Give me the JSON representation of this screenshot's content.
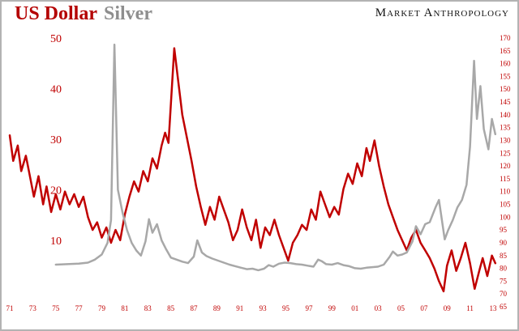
{
  "header": {
    "title_usd": "US Dollar",
    "title_silver": "Silver",
    "brand": "Market Anthropology"
  },
  "colors": {
    "usd_line": "#c00000",
    "silver_line": "#a8a8a8",
    "axis_text": "#c00000",
    "title_usd": "#b40000",
    "title_silver": "#8e8e8e",
    "background": "#ffffff",
    "frame": "#b3b3b3"
  },
  "chart_data": {
    "type": "line",
    "title": "US Dollar Silver",
    "grid": false,
    "legend_position": "none",
    "x_axis": {
      "tick_years": [
        1971,
        1973,
        1975,
        1977,
        1979,
        1981,
        1983,
        1985,
        1987,
        1989,
        1991,
        1993,
        1995,
        1997,
        1999,
        2001,
        2003,
        2005,
        2007,
        2009,
        2011,
        2013
      ],
      "tick_labels": [
        "71",
        "73",
        "75",
        "77",
        "79",
        "81",
        "83",
        "85",
        "87",
        "89",
        "91",
        "93",
        "95",
        "97",
        "99",
        "01",
        "03",
        "05",
        "07",
        "09",
        "11",
        "13"
      ],
      "range": [
        1971,
        2013.5
      ]
    },
    "left_axis": {
      "ticks": [
        50,
        40,
        30,
        20,
        10
      ],
      "range": [
        10,
        50
      ],
      "series": "Silver"
    },
    "right_axis": {
      "ticks": [
        170,
        165,
        160,
        155,
        150,
        145,
        140,
        135,
        130,
        125,
        120,
        115,
        110,
        105,
        100,
        95,
        90,
        85,
        80,
        75,
        70,
        65
      ],
      "range": [
        65,
        170
      ],
      "series": "US Dollar"
    },
    "series": [
      {
        "name": "US Dollar",
        "data_name": "usd-line",
        "axis": "right",
        "color": "#c00000",
        "x": [
          1971.0,
          1971.3,
          1971.7,
          1972.0,
          1972.4,
          1972.8,
          1973.1,
          1973.5,
          1973.9,
          1974.2,
          1974.6,
          1975.0,
          1975.4,
          1975.8,
          1976.2,
          1976.6,
          1977.0,
          1977.4,
          1977.8,
          1978.2,
          1978.6,
          1979.0,
          1979.4,
          1979.8,
          1980.2,
          1980.6,
          1981.0,
          1981.4,
          1981.8,
          1982.2,
          1982.6,
          1983.0,
          1983.4,
          1983.8,
          1984.2,
          1984.5,
          1984.8,
          1985.3,
          1985.7,
          1986.0,
          1986.4,
          1986.8,
          1987.2,
          1987.6,
          1988.0,
          1988.4,
          1988.8,
          1989.2,
          1989.6,
          1990.0,
          1990.4,
          1990.8,
          1991.2,
          1991.6,
          1992.0,
          1992.4,
          1992.8,
          1993.2,
          1993.6,
          1994.0,
          1994.4,
          1994.8,
          1995.2,
          1995.6,
          1996.0,
          1996.4,
          1996.8,
          1997.2,
          1997.6,
          1998.0,
          1998.4,
          1998.8,
          1999.2,
          1999.6,
          2000.0,
          2000.4,
          2000.8,
          2001.2,
          2001.6,
          2002.0,
          2002.3,
          2002.7,
          2003.1,
          2003.5,
          2003.9,
          2004.3,
          2004.7,
          2005.1,
          2005.5,
          2005.9,
          2006.3,
          2006.7,
          2007.1,
          2007.5,
          2007.9,
          2008.3,
          2008.7,
          2009.0,
          2009.4,
          2009.8,
          2010.2,
          2010.6,
          2011.0,
          2011.4,
          2011.8,
          2012.1,
          2012.5,
          2012.9,
          2013.2
        ],
        "values": [
          132,
          122,
          128,
          118,
          124,
          115,
          108,
          116,
          105,
          112,
          102,
          109,
          103,
          110,
          105,
          109,
          104,
          108,
          100,
          95,
          98,
          92,
          96,
          90,
          95,
          91,
          101,
          108,
          114,
          110,
          118,
          114,
          123,
          119,
          128,
          133,
          129,
          166,
          151,
          140,
          131,
          122,
          112,
          104,
          97,
          104,
          99,
          108,
          103,
          98,
          91,
          95,
          103,
          96,
          91,
          99,
          88,
          96,
          93,
          99,
          93,
          88,
          83,
          90,
          93,
          97,
          95,
          103,
          99,
          110,
          105,
          100,
          104,
          101,
          111,
          117,
          113,
          121,
          116,
          127,
          122,
          130,
          120,
          112,
          105,
          100,
          95,
          91,
          87,
          92,
          95,
          90,
          87,
          84,
          80,
          75,
          71,
          81,
          87,
          79,
          84,
          90,
          82,
          72,
          79,
          84,
          77,
          85,
          82
        ]
      },
      {
        "name": "Silver",
        "data_name": "silver-line",
        "axis": "left",
        "color": "#a8a8a8",
        "x": [
          1975.0,
          1976.0,
          1977.0,
          1977.8,
          1978.4,
          1979.0,
          1979.5,
          1979.8,
          1980.1,
          1980.4,
          1980.8,
          1981.2,
          1981.6,
          1982.0,
          1982.4,
          1982.8,
          1983.1,
          1983.4,
          1983.8,
          1984.2,
          1984.6,
          1985.0,
          1985.5,
          1986.0,
          1986.5,
          1987.0,
          1987.3,
          1987.7,
          1988.1,
          1988.6,
          1989.1,
          1989.6,
          1990.1,
          1990.6,
          1991.1,
          1991.6,
          1992.1,
          1992.6,
          1993.1,
          1993.5,
          1993.9,
          1994.4,
          1994.9,
          1995.4,
          1995.9,
          1996.4,
          1996.9,
          1997.4,
          1997.8,
          1998.1,
          1998.5,
          1999.0,
          1999.5,
          2000.0,
          2000.5,
          2001.0,
          2001.5,
          2002.0,
          2002.5,
          2003.0,
          2003.5,
          2004.0,
          2004.3,
          2004.7,
          2005.1,
          2005.5,
          2006.0,
          2006.3,
          2006.7,
          2007.1,
          2007.5,
          2008.0,
          2008.3,
          2008.8,
          2009.1,
          2009.5,
          2009.9,
          2010.3,
          2010.7,
          2011.0,
          2011.35,
          2011.6,
          2011.9,
          2012.2,
          2012.6,
          2012.9,
          2013.2
        ],
        "values": [
          5.2,
          5.3,
          5.4,
          5.6,
          6.2,
          7.2,
          9.5,
          14.0,
          48.7,
          20.0,
          15.5,
          12.0,
          9.5,
          8.0,
          7.0,
          9.8,
          14.2,
          11.5,
          13.2,
          10.0,
          8.2,
          6.6,
          6.2,
          5.8,
          5.5,
          6.8,
          10.0,
          7.6,
          6.9,
          6.4,
          6.0,
          5.6,
          5.2,
          4.9,
          4.6,
          4.3,
          4.4,
          4.1,
          4.4,
          5.1,
          4.8,
          5.4,
          5.6,
          5.5,
          5.3,
          5.2,
          5.0,
          4.8,
          6.2,
          5.9,
          5.3,
          5.2,
          5.5,
          5.1,
          4.9,
          4.5,
          4.4,
          4.6,
          4.7,
          4.8,
          5.2,
          6.7,
          7.8,
          7.0,
          7.2,
          7.6,
          9.8,
          12.8,
          11.2,
          13.2,
          13.6,
          16.5,
          18.0,
          10.2,
          12.0,
          14.0,
          16.5,
          18.0,
          21.0,
          28.5,
          45.5,
          34.0,
          40.5,
          32.0,
          28.0,
          34.0,
          31.0
        ]
      }
    ]
  }
}
